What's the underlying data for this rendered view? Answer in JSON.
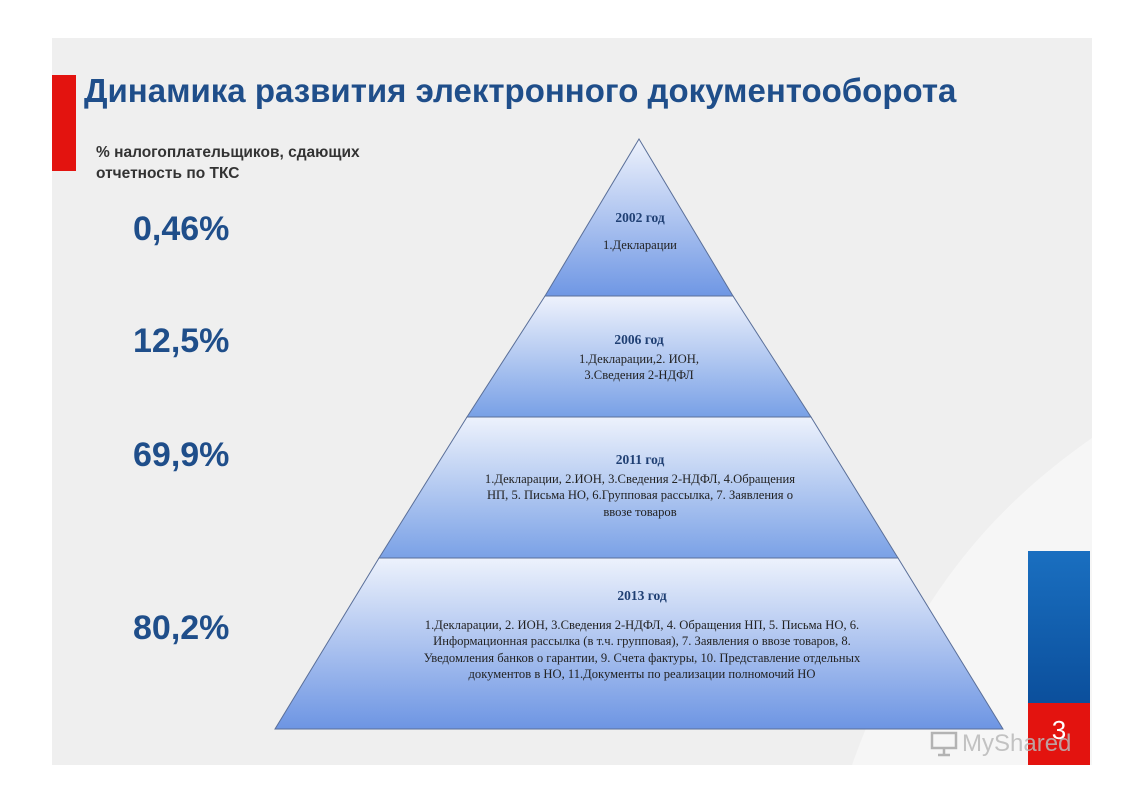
{
  "slide": {
    "title": "Динамика развития электронного документооборота",
    "subtitle": "% налогоплательщиков, сдающих отчетность  по ТКС",
    "percentages": [
      "0,46%",
      "12,5%",
      "69,9%",
      "80,2%"
    ],
    "tiers": [
      {
        "year": "2002 год",
        "body": "1.Декларации"
      },
      {
        "year": "2006 год",
        "body": "1.Декларации,2. ИОН, 3.Сведения 2-НДФЛ"
      },
      {
        "year": "2011 год",
        "body": "1.Декларации, 2.ИОН, 3.Сведения 2-НДФЛ, 4.Обращения НП, 5. Письма НО, 6.Групповая рассылка, 7. Заявления о ввозе товаров"
      },
      {
        "year": "2013 год",
        "body": "1.Декларации, 2. ИОН, 3.Сведения 2-НДФЛ, 4. Обращения НП, 5. Письма НО, 6. Информационная рассылка (в т.ч. групповая), 7. Заявления о ввозе товаров, 8. Уведомления банков о гарантии, 9. Счета фактуры, 10. Представление отдельных документов в НО, 11.Документы по реализации полномочий НО"
      }
    ],
    "page_number": "3"
  },
  "watermark": {
    "text": "MyShared",
    "icon": "presentation-board-icon"
  },
  "colors": {
    "title": "#1f4e8a",
    "accent_red": "#e3130f",
    "accent_blue": "#0b4f9c",
    "pyramid_light": "#e8eefb",
    "pyramid_dark": "#6f97e4"
  }
}
